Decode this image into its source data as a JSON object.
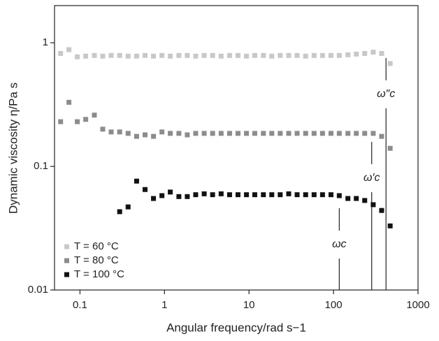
{
  "chart_data": {
    "type": "scatter",
    "xlabel": "Angular frequency/rad s−1",
    "ylabel": "Dynamic viscosity η/Pa s",
    "xscale": "log",
    "yscale": "log",
    "xlim": [
      0.05,
      1000
    ],
    "ylim": [
      0.01,
      2
    ],
    "xticks": [
      0.1,
      1,
      10,
      100,
      1000
    ],
    "yticks": [
      0.01,
      0.1,
      1
    ],
    "legend": "lower left",
    "series": [
      {
        "name": "T = 60 °C",
        "color": "#c8c8c8",
        "x": [
          0.059,
          0.074,
          0.093,
          0.117,
          0.148,
          0.186,
          0.234,
          0.295,
          0.371,
          0.468,
          0.589,
          0.741,
          0.933,
          1.17,
          1.48,
          1.86,
          2.34,
          2.95,
          3.71,
          4.68,
          5.89,
          7.41,
          9.33,
          11.7,
          14.8,
          18.6,
          23.4,
          29.5,
          37.1,
          46.8,
          58.9,
          74.1,
          93.3,
          117,
          148,
          186,
          234,
          295,
          371,
          468
        ],
        "values": [
          0.82,
          0.88,
          0.77,
          0.78,
          0.79,
          0.78,
          0.79,
          0.79,
          0.78,
          0.78,
          0.79,
          0.78,
          0.79,
          0.78,
          0.79,
          0.79,
          0.78,
          0.79,
          0.79,
          0.78,
          0.79,
          0.79,
          0.78,
          0.79,
          0.79,
          0.78,
          0.79,
          0.79,
          0.79,
          0.78,
          0.79,
          0.79,
          0.79,
          0.79,
          0.8,
          0.81,
          0.82,
          0.84,
          0.82,
          0.68
        ]
      },
      {
        "name": "T = 80 °C",
        "color": "#8c8c8c",
        "x": [
          0.059,
          0.074,
          0.093,
          0.117,
          0.148,
          0.186,
          0.234,
          0.295,
          0.371,
          0.468,
          0.589,
          0.741,
          0.933,
          1.17,
          1.48,
          1.86,
          2.34,
          2.95,
          3.71,
          4.68,
          5.89,
          7.41,
          9.33,
          11.7,
          14.8,
          18.6,
          23.4,
          29.5,
          37.1,
          46.8,
          58.9,
          74.1,
          93.3,
          117,
          148,
          186,
          234,
          295,
          371,
          468
        ],
        "values": [
          0.23,
          0.33,
          0.23,
          0.24,
          0.26,
          0.2,
          0.19,
          0.19,
          0.185,
          0.175,
          0.18,
          0.175,
          0.19,
          0.185,
          0.185,
          0.18,
          0.185,
          0.185,
          0.185,
          0.185,
          0.185,
          0.185,
          0.185,
          0.185,
          0.185,
          0.185,
          0.185,
          0.185,
          0.185,
          0.185,
          0.185,
          0.185,
          0.185,
          0.185,
          0.185,
          0.185,
          0.185,
          0.185,
          0.175,
          0.14
        ]
      },
      {
        "name": "T = 100 °C",
        "color": "#111111",
        "x": [
          0.295,
          0.371,
          0.468,
          0.589,
          0.741,
          0.933,
          1.17,
          1.48,
          1.86,
          2.34,
          2.95,
          3.71,
          4.68,
          5.89,
          7.41,
          9.33,
          11.7,
          14.8,
          18.6,
          23.4,
          29.5,
          37.1,
          46.8,
          58.9,
          74.1,
          93.3,
          117,
          148,
          186,
          234,
          295,
          371,
          468
        ],
        "values": [
          0.043,
          0.047,
          0.076,
          0.065,
          0.055,
          0.058,
          0.062,
          0.057,
          0.057,
          0.059,
          0.06,
          0.059,
          0.06,
          0.059,
          0.059,
          0.059,
          0.059,
          0.059,
          0.059,
          0.059,
          0.06,
          0.059,
          0.059,
          0.059,
          0.059,
          0.059,
          0.058,
          0.055,
          0.055,
          0.053,
          0.049,
          0.044,
          0.033
        ]
      }
    ],
    "annotations": [
      {
        "text": "ωc",
        "x": 117
      },
      {
        "text": "ω′c",
        "x": 283
      },
      {
        "text": "ω″c",
        "x": 418
      }
    ]
  }
}
